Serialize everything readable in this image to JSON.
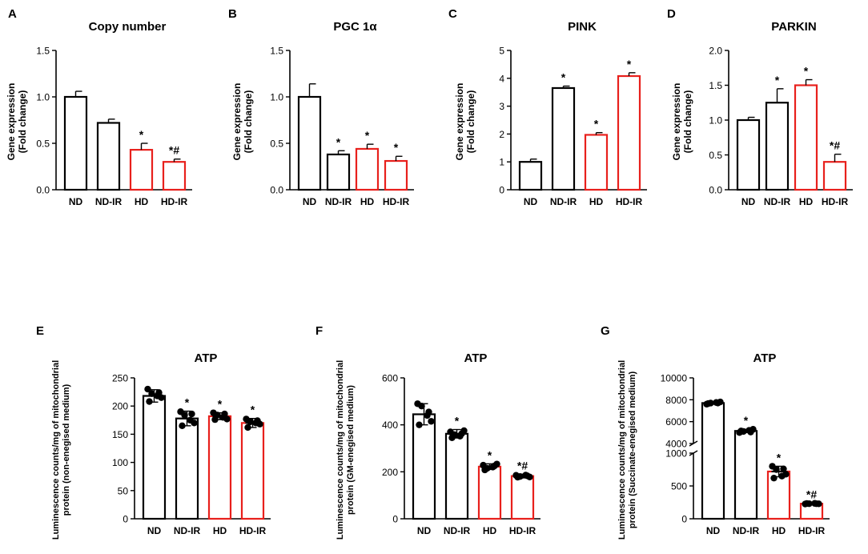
{
  "figure": {
    "groups": [
      "ND",
      "ND-IR",
      "HD",
      "HD-IR"
    ],
    "group_colors": [
      "#000000",
      "#000000",
      "#e8201c",
      "#e8201c"
    ]
  },
  "chart_data": [
    {
      "id": "A",
      "panel_label": "A",
      "type": "bar",
      "title": "Copy number",
      "ylabel": [
        "Gene expression",
        "(Fold change)"
      ],
      "categories": [
        "ND",
        "ND-IR",
        "HD",
        "HD-IR"
      ],
      "values": [
        1.0,
        0.72,
        0.43,
        0.3
      ],
      "errors": [
        0.06,
        0.04,
        0.07,
        0.03
      ],
      "annotations": [
        "",
        "",
        "*",
        "*#"
      ],
      "ylim": [
        0,
        1.5
      ],
      "yticks": [
        0,
        0.5,
        1.0,
        1.5
      ],
      "ytick_labels": [
        "0.0",
        "0.5",
        "1.0",
        "1.5"
      ]
    },
    {
      "id": "B",
      "panel_label": "B",
      "type": "bar",
      "title": "PGC 1α",
      "ylabel": [
        "Gene expression",
        "(Fold change)"
      ],
      "categories": [
        "ND",
        "ND-IR",
        "HD",
        "HD-IR"
      ],
      "values": [
        1.0,
        0.38,
        0.44,
        0.31
      ],
      "errors": [
        0.14,
        0.04,
        0.05,
        0.05
      ],
      "annotations": [
        "",
        "*",
        "*",
        "*"
      ],
      "ylim": [
        0,
        1.5
      ],
      "yticks": [
        0,
        0.5,
        1.0,
        1.5
      ],
      "ytick_labels": [
        "0.0",
        "0.5",
        "1.0",
        "1.5"
      ]
    },
    {
      "id": "C",
      "panel_label": "C",
      "type": "bar",
      "title": "PINK",
      "ylabel": [
        "Gene expression",
        "(Fold change)"
      ],
      "categories": [
        "ND",
        "ND-IR",
        "HD",
        "HD-IR"
      ],
      "values": [
        1.0,
        3.65,
        1.97,
        4.08
      ],
      "errors": [
        0.1,
        0.07,
        0.08,
        0.12
      ],
      "annotations": [
        "",
        "*",
        "*",
        "*"
      ],
      "ylim": [
        0,
        5
      ],
      "yticks": [
        0,
        1,
        2,
        3,
        4,
        5
      ],
      "ytick_labels": [
        "0",
        "1",
        "2",
        "3",
        "4",
        "5"
      ]
    },
    {
      "id": "D",
      "panel_label": "D",
      "type": "bar",
      "title": "PARKIN",
      "ylabel": [
        "Gene expression",
        "(Fold change)"
      ],
      "categories": [
        "ND",
        "ND-IR",
        "HD",
        "HD-IR"
      ],
      "values": [
        1.0,
        1.25,
        1.5,
        0.4
      ],
      "errors": [
        0.04,
        0.2,
        0.08,
        0.11
      ],
      "annotations": [
        "",
        "*",
        "*",
        "*#"
      ],
      "ylim": [
        0,
        2.0
      ],
      "yticks": [
        0,
        0.5,
        1.0,
        1.5,
        2.0
      ],
      "ytick_labels": [
        "0.0",
        "0.5",
        "1.0",
        "1.5",
        "2.0"
      ]
    },
    {
      "id": "E",
      "panel_label": "E",
      "type": "bar",
      "title": "ATP",
      "ylabel": [
        "Luminescence counts/mg of mitochondrial",
        "protein (non-enegised medium)"
      ],
      "categories": [
        "ND",
        "ND-IR",
        "HD",
        "HD-IR"
      ],
      "values": [
        218,
        178,
        182,
        170
      ],
      "errors": [
        11,
        13,
        6,
        8
      ],
      "points": [
        [
          230,
          222,
          218,
          215,
          208,
          224
        ],
        [
          190,
          184,
          175,
          170,
          165,
          186
        ],
        [
          188,
          184,
          180,
          177,
          176,
          186
        ],
        [
          177,
          172,
          170,
          168,
          162,
          174
        ]
      ],
      "annotations": [
        "",
        "*",
        "*",
        "*"
      ],
      "ylim": [
        0,
        250
      ],
      "yticks": [
        0,
        50,
        100,
        150,
        200,
        250
      ],
      "ytick_labels": [
        "0",
        "50",
        "100",
        "150",
        "200",
        "250"
      ]
    },
    {
      "id": "F",
      "panel_label": "F",
      "type": "bar",
      "title": "ATP",
      "ylabel": [
        "Luminescence counts/mg of mitochondrial",
        "protein (GM-enegised medium)"
      ],
      "categories": [
        "ND",
        "ND-IR",
        "HD",
        "HD-IR"
      ],
      "values": [
        445,
        362,
        222,
        182
      ],
      "errors": [
        45,
        18,
        12,
        8
      ],
      "points": [
        [
          490,
          480,
          440,
          415,
          400,
          455
        ],
        [
          370,
          358,
          352,
          375,
          345,
          362
        ],
        [
          228,
          215,
          220,
          233,
          208,
          225
        ],
        [
          185,
          180,
          186,
          178,
          177,
          183
        ]
      ],
      "annotations": [
        "",
        "*",
        "*",
        "*#"
      ],
      "ylim": [
        0,
        600
      ],
      "yticks": [
        0,
        200,
        400,
        600
      ],
      "ytick_labels": [
        "0",
        "200",
        "400",
        "600"
      ]
    },
    {
      "id": "G",
      "panel_label": "G",
      "type": "bar",
      "title": "ATP",
      "ylabel": [
        "Luminescence counts/mg of mitochondrial",
        "protein (Succinate-enegised medium)"
      ],
      "categories": [
        "ND",
        "ND-IR",
        "HD",
        "HD-IR"
      ],
      "values": [
        7700,
        5150,
        720,
        230
      ],
      "errors": [
        100,
        150,
        80,
        10
      ],
      "points": [
        [
          7600,
          7700,
          7750,
          7800,
          7650,
          7700
        ],
        [
          5000,
          5100,
          5200,
          5300,
          5150,
          5050
        ],
        [
          800,
          750,
          650,
          680,
          620,
          760
        ],
        [
          225,
          230,
          235,
          228,
          232,
          230
        ]
      ],
      "annotations": [
        "",
        "*",
        "*",
        "*#"
      ],
      "broken_axis": {
        "lower": [
          0,
          1000
        ],
        "upper": [
          4000,
          10000
        ]
      },
      "yticks_lower": [
        0,
        500,
        1000
      ],
      "ytick_labels_lower": [
        "0",
        "500",
        "1000"
      ],
      "yticks_upper": [
        4000,
        6000,
        8000,
        10000
      ],
      "ytick_labels_upper": [
        "4000",
        "6000",
        "8000",
        "10000"
      ]
    }
  ]
}
